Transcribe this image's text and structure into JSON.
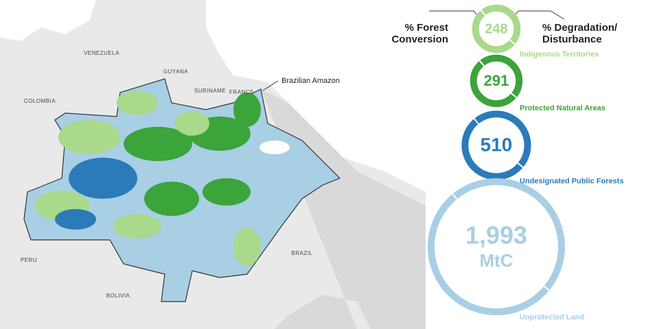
{
  "map": {
    "countries": [
      "VENEZUELA",
      "GUYANA",
      "SURINAME",
      "FRANCE",
      "COLOMBIA",
      "PERU",
      "BOLIVIA",
      "BRAZIL"
    ],
    "region_label": "Brazilian Amazon"
  },
  "headers": {
    "left": [
      "% Forest",
      "Conversion"
    ],
    "right": [
      "% Degradation/",
      "Disturbance"
    ]
  },
  "rings": [
    {
      "name": "Indigenous Territories",
      "value": 248,
      "label": "248",
      "color": "#a9d98b"
    },
    {
      "name": "Protected Natural Areas",
      "value": 291,
      "label": "291",
      "color": "#3ba43b"
    },
    {
      "name": "Undesignated Public Forests",
      "value": 510,
      "label": "510",
      "color": "#2b7bb9"
    },
    {
      "name": "Unprotected Land",
      "value": 1993,
      "label": "1,993",
      "unit": "MtC",
      "color": "#a8cfe4"
    }
  ]
}
